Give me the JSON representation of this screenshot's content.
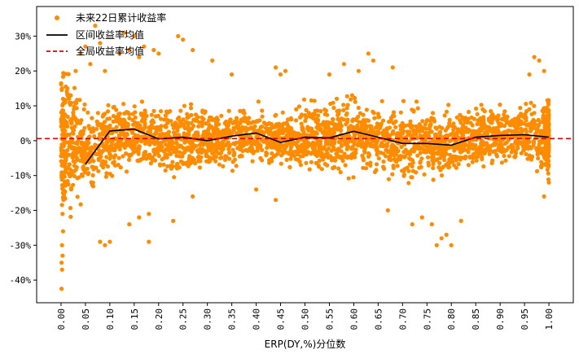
{
  "chart_data": {
    "type": "scatter",
    "title": "",
    "xlabel": "ERP(DY,%)分位数",
    "ylabel": "",
    "xlim": [
      -0.05,
      1.05
    ],
    "ylim": [
      -0.465,
      0.385
    ],
    "x_ticks": [
      0.0,
      0.05,
      0.1,
      0.15,
      0.2,
      0.25,
      0.3,
      0.35,
      0.4,
      0.45,
      0.5,
      0.55,
      0.6,
      0.65,
      0.7,
      0.75,
      0.8,
      0.85,
      0.9,
      0.95,
      1.0
    ],
    "x_tick_labels": [
      "0.00",
      "0.05",
      "0.10",
      "0.15",
      "0.20",
      "0.25",
      "0.30",
      "0.35",
      "0.40",
      "0.45",
      "0.50",
      "0.55",
      "0.60",
      "0.65",
      "0.70",
      "0.75",
      "0.80",
      "0.85",
      "0.90",
      "0.95",
      "1.00"
    ],
    "y_ticks": [
      -0.4,
      -0.3,
      -0.2,
      -0.1,
      0.0,
      0.1,
      0.2,
      0.3
    ],
    "y_tick_labels": [
      "-40%",
      "-30%",
      "-20%",
      "-10%",
      "0%",
      "10%",
      "20%",
      "30%"
    ],
    "legend_position": "top-left",
    "grid": false,
    "series": [
      {
        "name": "未来22日累计收益率",
        "kind": "scatter",
        "color": "#FF8C00",
        "bands": [
          {
            "x": 0.0,
            "mean": 0.0,
            "spread": 0.17
          },
          {
            "x": 0.03,
            "mean": -0.02,
            "spread": 0.12
          },
          {
            "x": 0.06,
            "mean": -0.03,
            "spread": 0.1
          },
          {
            "x": 0.1,
            "mean": 0.01,
            "spread": 0.08
          },
          {
            "x": 0.15,
            "mean": 0.02,
            "spread": 0.07
          },
          {
            "x": 0.2,
            "mean": 0.0,
            "spread": 0.07
          },
          {
            "x": 0.25,
            "mean": 0.01,
            "spread": 0.08
          },
          {
            "x": 0.3,
            "mean": 0.0,
            "spread": 0.07
          },
          {
            "x": 0.35,
            "mean": 0.01,
            "spread": 0.07
          },
          {
            "x": 0.4,
            "mean": 0.02,
            "spread": 0.06
          },
          {
            "x": 0.45,
            "mean": 0.0,
            "spread": 0.06
          },
          {
            "x": 0.5,
            "mean": 0.01,
            "spread": 0.07
          },
          {
            "x": 0.55,
            "mean": 0.01,
            "spread": 0.08
          },
          {
            "x": 0.6,
            "mean": 0.02,
            "spread": 0.09
          },
          {
            "x": 0.65,
            "mean": 0.01,
            "spread": 0.08
          },
          {
            "x": 0.7,
            "mean": -0.01,
            "spread": 0.08
          },
          {
            "x": 0.75,
            "mean": -0.01,
            "spread": 0.08
          },
          {
            "x": 0.8,
            "mean": -0.01,
            "spread": 0.07
          },
          {
            "x": 0.85,
            "mean": 0.01,
            "spread": 0.06
          },
          {
            "x": 0.9,
            "mean": 0.02,
            "spread": 0.06
          },
          {
            "x": 0.95,
            "mean": 0.02,
            "spread": 0.07
          },
          {
            "x": 1.0,
            "mean": 0.01,
            "spread": 0.09
          }
        ],
        "outliers": [
          [
            0.001,
            -0.425
          ],
          [
            0.002,
            -0.37
          ],
          [
            0.001,
            -0.35
          ],
          [
            0.003,
            -0.33
          ],
          [
            0.002,
            -0.3
          ],
          [
            0.004,
            -0.26
          ],
          [
            0.003,
            -0.21
          ],
          [
            0.005,
            -0.17
          ],
          [
            0.004,
            -0.15
          ],
          [
            0.006,
            -0.1
          ],
          [
            0.002,
            0.15
          ],
          [
            0.004,
            0.12
          ],
          [
            0.012,
            0.14
          ],
          [
            0.02,
            0.13
          ],
          [
            0.03,
            0.2
          ],
          [
            0.04,
            0.25
          ],
          [
            0.05,
            0.27
          ],
          [
            0.07,
            0.33
          ],
          [
            0.08,
            0.28
          ],
          [
            0.06,
            0.22
          ],
          [
            0.09,
            0.2
          ],
          [
            0.12,
            0.25
          ],
          [
            0.14,
            0.26
          ],
          [
            0.13,
            0.31
          ],
          [
            0.15,
            0.3
          ],
          [
            0.16,
            0.24
          ],
          [
            0.17,
            0.27
          ],
          [
            0.19,
            0.26
          ],
          [
            0.2,
            0.25
          ],
          [
            0.24,
            0.3
          ],
          [
            0.25,
            0.29
          ],
          [
            0.27,
            0.26
          ],
          [
            0.08,
            -0.29
          ],
          [
            0.09,
            -0.3
          ],
          [
            0.1,
            -0.29
          ],
          [
            0.14,
            -0.24
          ],
          [
            0.16,
            -0.22
          ],
          [
            0.18,
            -0.21
          ],
          [
            0.18,
            -0.29
          ],
          [
            0.23,
            -0.23
          ],
          [
            0.27,
            -0.16
          ],
          [
            0.31,
            0.23
          ],
          [
            0.35,
            0.19
          ],
          [
            0.44,
            0.21
          ],
          [
            0.45,
            0.19
          ],
          [
            0.46,
            0.2
          ],
          [
            0.4,
            -0.14
          ],
          [
            0.44,
            -0.17
          ],
          [
            0.55,
            0.19
          ],
          [
            0.58,
            0.22
          ],
          [
            0.61,
            0.2
          ],
          [
            0.63,
            0.25
          ],
          [
            0.64,
            0.23
          ],
          [
            0.68,
            0.21
          ],
          [
            0.67,
            -0.2
          ],
          [
            0.72,
            -0.24
          ],
          [
            0.74,
            -0.22
          ],
          [
            0.76,
            -0.24
          ],
          [
            0.77,
            -0.3
          ],
          [
            0.78,
            -0.28
          ],
          [
            0.79,
            -0.27
          ],
          [
            0.8,
            -0.3
          ],
          [
            0.82,
            -0.23
          ],
          [
            0.97,
            0.24
          ],
          [
            0.98,
            0.23
          ],
          [
            0.99,
            0.2
          ],
          [
            0.96,
            0.19
          ],
          [
            0.99,
            -0.16
          ],
          [
            1.0,
            -0.12
          ]
        ],
        "n_points": 3200
      },
      {
        "name": "区间收益率均值",
        "kind": "line",
        "color": "#000000",
        "x": [
          0.05,
          0.1,
          0.15,
          0.2,
          0.25,
          0.3,
          0.35,
          0.4,
          0.45,
          0.5,
          0.55,
          0.6,
          0.65,
          0.7,
          0.75,
          0.8,
          0.85,
          0.9,
          0.95,
          1.0
        ],
        "y": [
          -0.067,
          0.028,
          0.033,
          0.005,
          0.01,
          0.0,
          0.013,
          0.022,
          -0.005,
          0.01,
          0.008,
          0.027,
          0.01,
          -0.008,
          -0.008,
          -0.013,
          0.01,
          0.015,
          0.017,
          0.01
        ]
      },
      {
        "name": "全局收益率均值",
        "kind": "hline",
        "color": "#E00000",
        "y": 0.006
      }
    ]
  }
}
